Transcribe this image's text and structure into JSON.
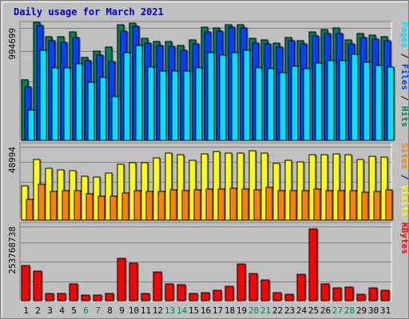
{
  "colors": {
    "frame_bg": "#c0c0c0",
    "title": "#0000c0",
    "hits": "#00805c",
    "files": "#0040ff",
    "pages": "#00e0ff",
    "visits": "#ffff00",
    "sites": "#ff8000",
    "kbytes": "#ff0000",
    "weekend_tick": "#00805c",
    "weekday_tick": "#000000"
  },
  "chart_data": {
    "type": "bar",
    "title": "Daily usage for March 2021",
    "categories": [
      "1",
      "2",
      "3",
      "4",
      "5",
      "6",
      "7",
      "8",
      "9",
      "10",
      "11",
      "12",
      "13",
      "14",
      "15",
      "16",
      "17",
      "18",
      "19",
      "20",
      "21",
      "22",
      "23",
      "24",
      "25",
      "26",
      "27",
      "28",
      "29",
      "30",
      "31"
    ],
    "weekend_days": [
      "6",
      "7",
      "13",
      "14",
      "20",
      "21",
      "27",
      "28"
    ],
    "panels": [
      {
        "ytick_label": "994699",
        "ylim": [
          0,
          1053000
        ],
        "series": [
          {
            "name": "Hits",
            "color_key": "hits",
            "values": [
              540000,
              1045000,
              922000,
              922000,
              960000,
              738000,
              788000,
              828000,
              1028000,
              1042000,
              902000,
              876000,
              876000,
              840000,
              892000,
              1000000,
              998000,
              1026000,
              1028000,
              902000,
              892000,
              864000,
              912000,
              884000,
              960000,
              980000,
              994699,
              888000,
              950000,
              932000,
              922000
            ]
          },
          {
            "name": "Files",
            "color_key": "files",
            "values": [
              470000,
              1020000,
              880000,
              872000,
              910000,
              704000,
              756000,
              700000,
              966000,
              1010000,
              860000,
              840000,
              836000,
              800000,
              852000,
              964000,
              966000,
              1000000,
              994699,
              862000,
              856000,
              830000,
              880000,
              856000,
              926000,
              950000,
              950000,
              852000,
              914000,
              894000,
              882000
            ]
          },
          {
            "name": "Pages",
            "color_key": "pages",
            "values": [
              270000,
              796000,
              646000,
              642000,
              680000,
              514000,
              558000,
              390000,
              780000,
              838000,
              650000,
              612000,
              618000,
              612000,
              642000,
              774000,
              756000,
              776000,
              796000,
              642000,
              638000,
              604000,
              658000,
              634000,
              688000,
              706000,
              706000,
              760000,
              694000,
              666000,
              650000
            ]
          }
        ]
      },
      {
        "ytick_label": "48994",
        "ylim": [
          0,
          52200
        ],
        "series": [
          {
            "name": "Visits",
            "color_key": "visits",
            "values": [
              23000,
              40800,
              35200,
              34000,
              33400,
              29800,
              29200,
              32000,
              37800,
              38700,
              38900,
              42200,
              45300,
              44100,
              40600,
              44800,
              46300,
              45300,
              45400,
              46900,
              45100,
              38200,
              40600,
              39400,
              44000,
              44200,
              44600,
              44300,
              41000,
              43100,
              42600
            ]
          },
          {
            "name": "Sites",
            "color_key": "sites",
            "values": [
              14100,
              24200,
              19600,
              19800,
              19900,
              17800,
              15900,
              16300,
              18500,
              19900,
              19600,
              19600,
              20400,
              20000,
              20400,
              20900,
              20900,
              21300,
              20900,
              20400,
              21800,
              19700,
              19700,
              19700,
              20900,
              20000,
              20000,
              20000,
              18800,
              19200,
              20400
            ]
          }
        ]
      },
      {
        "ytick_label": "253768738",
        "ylim": [
          0,
          280000000
        ],
        "series": [
          {
            "name": "KBytes",
            "color_key": "kbytes",
            "values": [
              126000000,
              106000000,
              25000000,
              25000000,
              61000000,
              20000000,
              19000000,
              25000000,
              150000000,
              133000000,
              27000000,
              102000000,
              60000000,
              56000000,
              26000000,
              28000000,
              37000000,
              50000000,
              130000000,
              97000000,
              75000000,
              29000000,
              22000000,
              95000000,
              258000000,
              59000000,
              46000000,
              48000000,
              24000000,
              47000000,
              37000000
            ]
          }
        ]
      }
    ]
  }
}
